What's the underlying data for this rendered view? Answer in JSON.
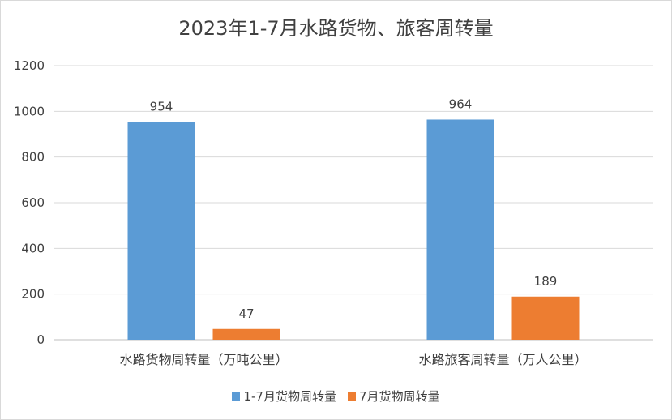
{
  "chart_data": {
    "type": "bar",
    "title": "2023年1-7月水路货物、旅客周转量",
    "categories": [
      "水路货物周转量（万吨公里）",
      "水路旅客周转量（万人公里）"
    ],
    "series": [
      {
        "name": "1-7月货物周转量",
        "values": [
          954,
          964
        ],
        "color": "#5b9bd5"
      },
      {
        "name": "7月货物周转量",
        "values": [
          47,
          189
        ],
        "color": "#ed7d31"
      }
    ],
    "ylim": [
      0,
      1200
    ],
    "yticks": [
      0,
      200,
      400,
      600,
      800,
      1000,
      1200
    ],
    "grid": true,
    "legend": "bottom"
  }
}
